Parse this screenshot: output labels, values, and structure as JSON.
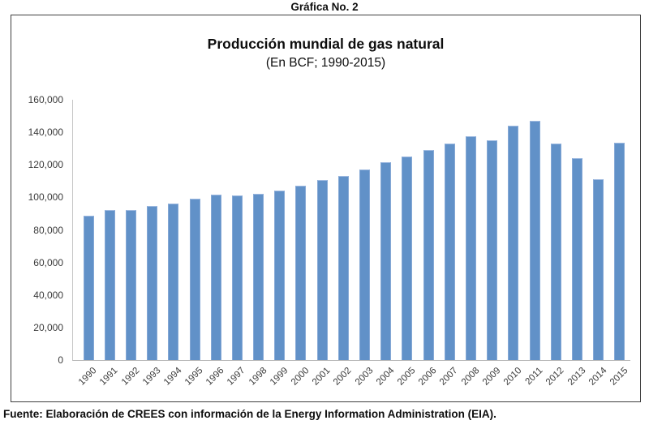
{
  "page": {
    "heading": "Gráfica No. 2",
    "source_note": "Fuente: Elaboración de CREES con información de la Energy Information Administration (EIA)."
  },
  "chart_data": {
    "type": "bar",
    "title": "Producción mundial de gas natural",
    "subtitle": "(En BCF; 1990-2015)",
    "xlabel": "",
    "ylabel": "",
    "categories": [
      "1990",
      "1991",
      "1992",
      "1993",
      "1994",
      "1995",
      "1996",
      "1997",
      "1998",
      "1999",
      "2000",
      "2001",
      "2002",
      "2003",
      "2004",
      "2005",
      "2006",
      "2007",
      "2008",
      "2009",
      "2010",
      "2011",
      "2012",
      "2013",
      "2014",
      "2015"
    ],
    "values": [
      88500,
      92000,
      92000,
      94500,
      96000,
      99000,
      101500,
      101000,
      102000,
      104000,
      107000,
      110500,
      113000,
      117000,
      121500,
      125000,
      129000,
      133000,
      137500,
      135000,
      144000,
      147000,
      133000,
      124000,
      111000,
      133500
    ],
    "ylim": [
      0,
      160000
    ],
    "ytick_step": 20000,
    "ytick_labels": [
      "0",
      "20,000",
      "40,000",
      "60,000",
      "80,000",
      "100,000",
      "120,000",
      "140,000",
      "160,000"
    ],
    "grid": false,
    "legend_position": "none",
    "bar_color": "#6191c8",
    "axis_color": "#c6c6c6",
    "label_color": "#3a3a3a"
  }
}
